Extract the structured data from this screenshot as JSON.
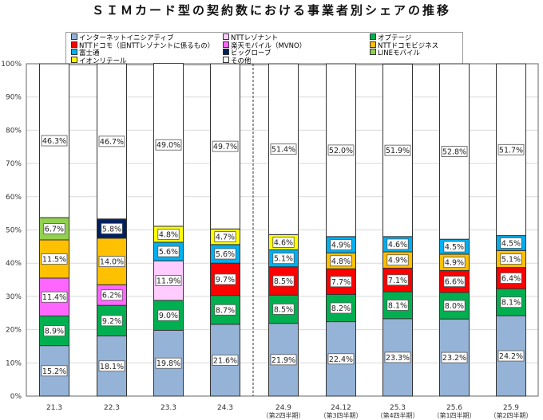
{
  "chart_data": {
    "type": "bar",
    "stacked": true,
    "title": "ＳＩＭカード型の契約数における事業者別シェアの推移",
    "categories": [
      "21.3",
      "22.3",
      "23.3",
      "24.3",
      "24.9",
      "24.12",
      "25.3",
      "25.6",
      "25.9"
    ],
    "category_sublabels": [
      "",
      "",
      "",
      "",
      "（第2四半期）",
      "（第3四半期）",
      "（第4四半期）",
      "（第1四半期）",
      "（第2四半期）"
    ],
    "ylim": [
      0,
      100
    ],
    "yticks": [
      "0%",
      "10%",
      "20%",
      "30%",
      "40%",
      "50%",
      "60%",
      "70%",
      "80%",
      "90%",
      "100%"
    ],
    "grid": true,
    "legend_position": "top",
    "series": [
      {
        "name": "インターネットイニシアティブ",
        "color": "#95B3D7",
        "values": [
          15.2,
          18.1,
          19.8,
          21.6,
          21.9,
          22.4,
          23.3,
          23.2,
          24.2
        ]
      },
      {
        "name": "オプテージ",
        "color": "#00B050",
        "values": [
          8.9,
          9.2,
          9.0,
          8.7,
          8.5,
          8.2,
          8.1,
          8.0,
          8.1
        ]
      },
      {
        "name": "NTTレゾナント",
        "color": "#FFCCFF",
        "values": [
          null,
          null,
          11.9,
          null,
          null,
          null,
          null,
          null,
          null
        ]
      },
      {
        "name": "楽天モバイル（MVNO）",
        "color": "#FF66FF",
        "values": [
          11.4,
          6.2,
          null,
          null,
          null,
          null,
          null,
          null,
          null
        ]
      },
      {
        "name": "NTTドコモ（旧NTTレゾナントに係るもの）",
        "color": "#FF0000",
        "values": [
          null,
          null,
          null,
          9.7,
          8.5,
          7.7,
          7.1,
          6.6,
          6.4
        ]
      },
      {
        "name": "NTTドコモビジネス",
        "color": "#FFC000",
        "values": [
          11.5,
          14.0,
          null,
          null,
          null,
          4.8,
          4.9,
          4.9,
          5.1
        ]
      },
      {
        "name": "富士通",
        "color": "#00B0F0",
        "values": [
          null,
          null,
          5.6,
          5.6,
          5.1,
          4.9,
          4.6,
          4.5,
          4.5
        ]
      },
      {
        "name": "ビッグローブ",
        "color": "#002060",
        "values": [
          null,
          5.8,
          null,
          null,
          null,
          null,
          null,
          null,
          null
        ]
      },
      {
        "name": "LINEモバイル",
        "color": "#92D050",
        "values": [
          6.7,
          null,
          null,
          null,
          null,
          null,
          null,
          null,
          null
        ]
      },
      {
        "name": "イオンリテール",
        "color": "#FFFF00",
        "values": [
          null,
          null,
          4.8,
          4.7,
          4.6,
          null,
          null,
          null,
          null
        ]
      },
      {
        "name": "その他",
        "color": "#FFFFFF",
        "values": [
          46.3,
          46.7,
          49.0,
          49.7,
          51.4,
          52.0,
          51.9,
          52.8,
          51.7
        ]
      }
    ],
    "legend_order": [
      "インターネットイニシアティブ",
      "NTTレゾナント",
      "オプテージ",
      "NTTドコモ（旧NTTレゾナントに係るもの）",
      "楽天モバイル（MVNO）",
      "NTTドコモビジネス",
      "富士通",
      "ビッグローブ",
      "LINEモバイル",
      "イオンリテール",
      "その他"
    ]
  }
}
